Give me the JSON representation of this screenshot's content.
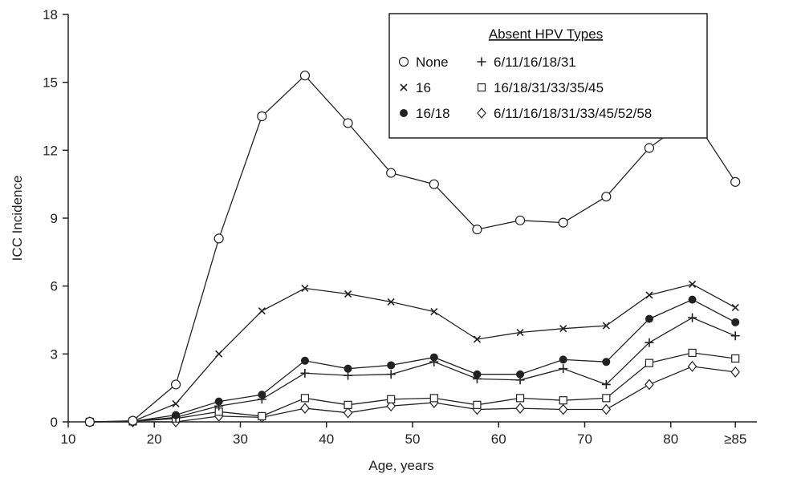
{
  "chart_data": {
    "type": "line",
    "xlabel": "Age, years",
    "ylabel": "ICC Incidence",
    "xlim": [
      10,
      90
    ],
    "ylim": [
      0,
      18
    ],
    "x_ticks": [
      {
        "value": 10,
        "label": "10"
      },
      {
        "value": 20,
        "label": "20"
      },
      {
        "value": 30,
        "label": "30"
      },
      {
        "value": 40,
        "label": "40"
      },
      {
        "value": 50,
        "label": "50"
      },
      {
        "value": 60,
        "label": "60"
      },
      {
        "value": 70,
        "label": "70"
      },
      {
        "value": 80,
        "label": "80"
      },
      {
        "value": 87.5,
        "label": "≥85"
      }
    ],
    "y_ticks": [
      {
        "value": 0,
        "label": "0"
      },
      {
        "value": 3,
        "label": "3"
      },
      {
        "value": 6,
        "label": "6"
      },
      {
        "value": 9,
        "label": "9"
      },
      {
        "value": 12,
        "label": "12"
      },
      {
        "value": 15,
        "label": "15"
      },
      {
        "value": 18,
        "label": "18"
      }
    ],
    "x": [
      12.5,
      17.5,
      22.5,
      27.5,
      32.5,
      37.5,
      42.5,
      47.5,
      52.5,
      57.5,
      62.5,
      67.5,
      72.5,
      77.5,
      82.5,
      87.5
    ],
    "legend": {
      "title": "Absent HPV Types",
      "placement": "top-right"
    },
    "series": [
      {
        "name": "None",
        "marker": "circle-open",
        "values": [
          0,
          0.05,
          1.65,
          8.1,
          13.5,
          15.3,
          13.2,
          11.0,
          10.5,
          8.5,
          8.9,
          8.8,
          9.95,
          12.1,
          13.5,
          10.6
        ]
      },
      {
        "name": "16",
        "marker": "x",
        "values": [
          0,
          0.02,
          0.8,
          3.0,
          4.9,
          5.9,
          5.65,
          5.3,
          4.87,
          3.65,
          3.95,
          4.12,
          4.25,
          5.6,
          6.08,
          5.05
        ]
      },
      {
        "name": "16/18",
        "marker": "circle-filled",
        "values": [
          0,
          0.02,
          0.3,
          0.9,
          1.2,
          2.7,
          2.35,
          2.5,
          2.85,
          2.1,
          2.1,
          2.75,
          2.65,
          4.55,
          5.4,
          4.4
        ]
      },
      {
        "name": "6/11/16/18/31",
        "marker": "plus",
        "values": [
          0,
          0.02,
          0.2,
          0.7,
          1.0,
          2.15,
          2.05,
          2.1,
          2.65,
          1.9,
          1.85,
          2.35,
          1.65,
          3.5,
          4.6,
          3.8
        ]
      },
      {
        "name": "16/18/31/33/35/45",
        "marker": "square-open",
        "values": [
          0,
          0.02,
          0.15,
          0.45,
          0.25,
          1.05,
          0.75,
          1.0,
          1.05,
          0.75,
          1.05,
          0.95,
          1.05,
          2.6,
          3.05,
          2.8
        ]
      },
      {
        "name": "6/11/16/18/31/33/45/52/58",
        "marker": "diamond-open",
        "values": [
          0,
          0.0,
          0.0,
          0.25,
          0.2,
          0.6,
          0.4,
          0.7,
          0.85,
          0.55,
          0.6,
          0.55,
          0.55,
          1.65,
          2.45,
          2.2
        ]
      }
    ],
    "grid": false,
    "colors": {
      "line": "#222222",
      "axis": "#222222",
      "background": "#ffffff"
    }
  }
}
